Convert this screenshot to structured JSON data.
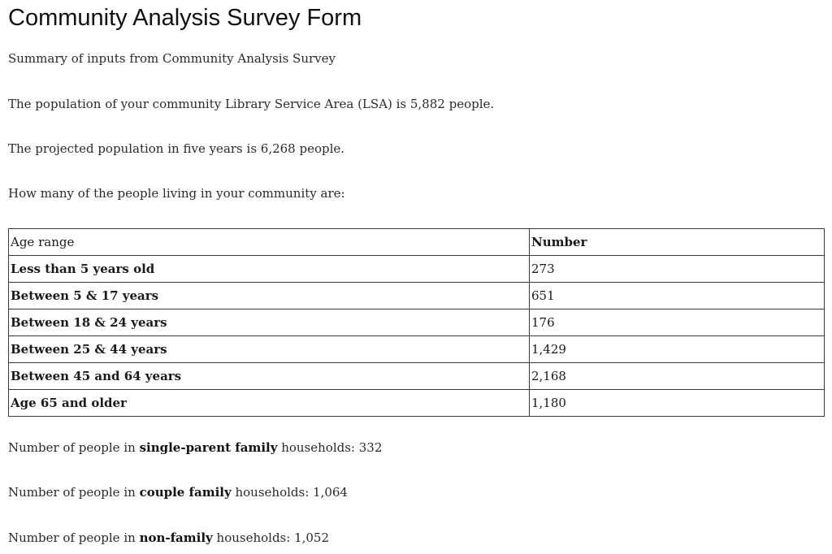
{
  "page_title": "Community Analysis Survey Form",
  "summary": "Summary of inputs from Community Analysis Survey",
  "population_sentence": "The population of your community Library Service Area (LSA) is 5,882 people.",
  "projected_sentence": "The projected population in five years is 6,268 people.",
  "question": "How many of the people living in your community are:",
  "table": {
    "headers": [
      "Age range",
      "Number"
    ],
    "rows": [
      {
        "label": "Less than 5 years old",
        "value": "273"
      },
      {
        "label": "Between 5 & 17 years",
        "value": "651"
      },
      {
        "label": "Between 18 & 24 years",
        "value": "176"
      },
      {
        "label": "Between 25 & 44 years",
        "value": "1,429"
      },
      {
        "label": "Between 45 and 64 years",
        "value": "2,168"
      },
      {
        "label": "Age 65 and older",
        "value": "1,180"
      }
    ]
  },
  "households": [
    {
      "prefix": "Number of people in ",
      "bold": "single-parent family",
      "suffix": " households: 332"
    },
    {
      "prefix": "Number of people in ",
      "bold": "couple family",
      "suffix": " households: 1,064"
    },
    {
      "prefix": "Number of people in ",
      "bold": "non-family",
      "suffix": " households: 1,052"
    }
  ]
}
